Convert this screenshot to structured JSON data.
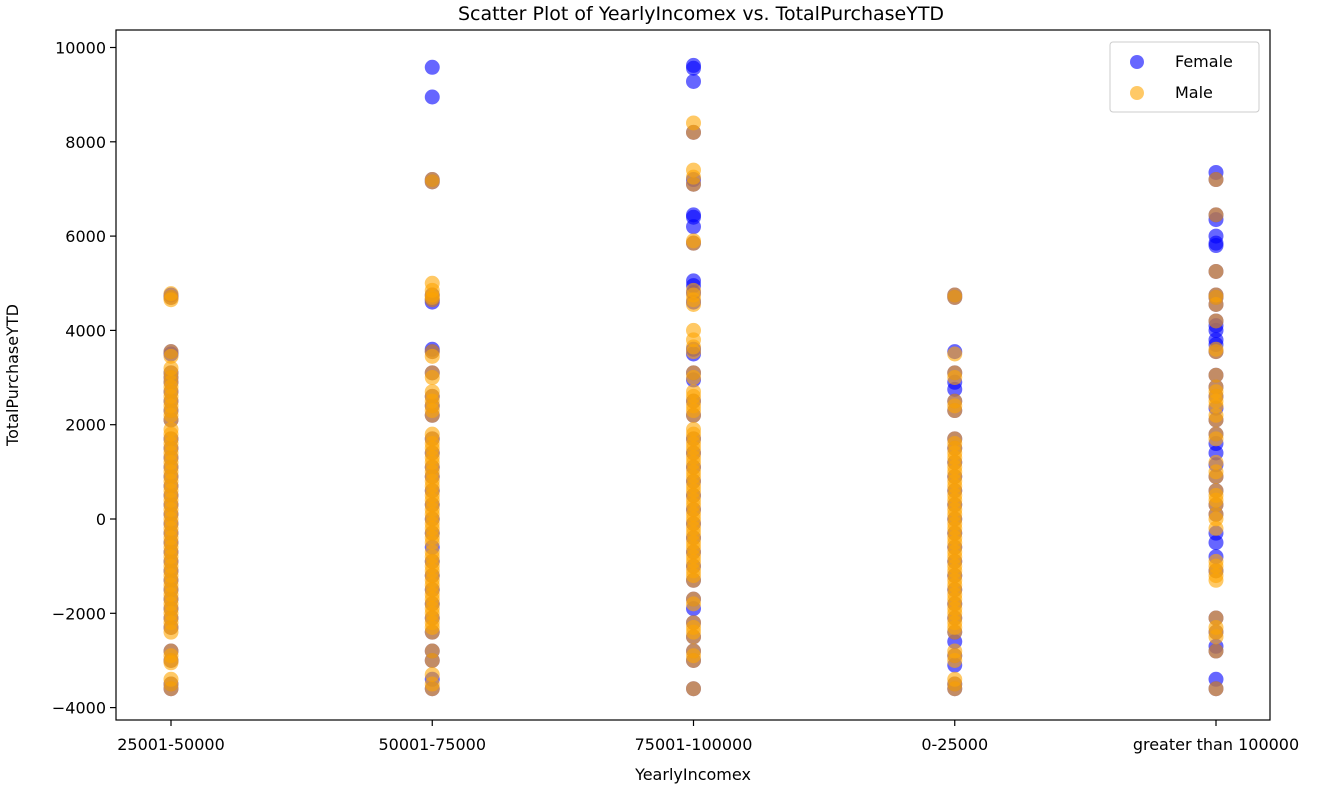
{
  "chart_data": {
    "type": "scatter",
    "title": "Scatter Plot of YearlyIncomex vs. TotalPurchaseYTD",
    "xlabel": "YearlyIncomex",
    "ylabel": "TotalPurchaseYTD",
    "categories": [
      "25001-50000",
      "50001-75000",
      "75001-100000",
      "0-25000",
      "greater than 100000"
    ],
    "ylim": [
      -4300,
      10300
    ],
    "yticks": [
      -4000,
      -2000,
      0,
      2000,
      4000,
      6000,
      8000,
      10000
    ],
    "ytick_labels": [
      "−4000",
      "−2000",
      "0",
      "2000",
      "4000",
      "6000",
      "8000",
      "10000"
    ],
    "legend_position": "top-right",
    "grid": false,
    "series": [
      {
        "name": "Female",
        "color": "#0000ff",
        "alpha": 0.6,
        "points": [
          {
            "x": "25001-50000",
            "y": [
              4750,
              4700,
              3550,
              3500,
              3100,
              3000,
              2900,
              2700,
              2500,
              2300,
              2100,
              1700,
              1500,
              1300,
              1100,
              900,
              700,
              500,
              300,
              100,
              -100,
              -300,
              -500,
              -700,
              -900,
              -1100,
              -1300,
              -1500,
              -1700,
              -1900,
              -2100,
              -2300,
              -2800,
              -3000,
              -3500,
              -3600
            ]
          },
          {
            "x": "50001-75000",
            "y": [
              9580,
              8950,
              7200,
              7150,
              4750,
              4650,
              4600,
              3600,
              3550,
              3100,
              2600,
              2400,
              2200,
              1700,
              1400,
              1100,
              900,
              600,
              300,
              0,
              -300,
              -600,
              -900,
              -1200,
              -1500,
              -1800,
              -2100,
              -2400,
              -2800,
              -3000,
              -3400,
              -3600
            ]
          },
          {
            "x": "75001-100000",
            "y": [
              9620,
              9560,
              9280,
              8200,
              7200,
              7100,
              6450,
              6400,
              6200,
              5850,
              5050,
              4950,
              4800,
              4600,
              3600,
              3500,
              3100,
              2950,
              2500,
              2200,
              1700,
              1400,
              1100,
              800,
              500,
              200,
              -100,
              -400,
              -700,
              -1000,
              -1300,
              -1700,
              -1900,
              -2200,
              -2500,
              -2800,
              -3000,
              -3600
            ]
          },
          {
            "x": "0-25000",
            "y": [
              4750,
              4700,
              3550,
              3100,
              2900,
              2750,
              2500,
              2300,
              1700,
              1500,
              1200,
              900,
              600,
              300,
              0,
              -300,
              -600,
              -900,
              -1200,
              -1500,
              -1800,
              -2100,
              -2400,
              -2600,
              -2900,
              -3100,
              -3500,
              -3600
            ]
          },
          {
            "x": "greater than 100000",
            "y": [
              7350,
              7200,
              6450,
              6350,
              6000,
              5850,
              5800,
              5250,
              4750,
              4700,
              4550,
              4200,
              4100,
              4000,
              3800,
              3700,
              3550,
              3050,
              2800,
              2600,
              2350,
              2100,
              1800,
              1600,
              1400,
              1150,
              900,
              600,
              300,
              100,
              -300,
              -500,
              -800,
              -1100,
              -2100,
              -2400,
              -2700,
              -2800,
              -3400,
              -3600
            ]
          }
        ]
      },
      {
        "name": "Male",
        "color": "#ffa500",
        "alpha": 0.6,
        "points": [
          {
            "x": "25001-50000",
            "y": [
              4780,
              4700,
              4650,
              3550,
              3450,
              3200,
              3100,
              3000,
              2900,
              2800,
              2700,
              2600,
              2500,
              2400,
              2300,
              2200,
              2100,
              1900,
              1800,
              1700,
              1600,
              1500,
              1400,
              1300,
              1200,
              1100,
              1000,
              900,
              800,
              700,
              600,
              500,
              400,
              300,
              200,
              100,
              0,
              -100,
              -200,
              -300,
              -400,
              -500,
              -600,
              -700,
              -800,
              -900,
              -1000,
              -1100,
              -1200,
              -1300,
              -1400,
              -1500,
              -1600,
              -1700,
              -1800,
              -1900,
              -2000,
              -2100,
              -2200,
              -2300,
              -2400,
              -2800,
              -2900,
              -3000,
              -3050,
              -3400,
              -3500,
              -3600
            ]
          },
          {
            "x": "50001-75000",
            "y": [
              7200,
              7150,
              5000,
              4850,
              4750,
              4700,
              4650,
              3550,
              3450,
              3100,
              3000,
              2700,
              2600,
              2500,
              2400,
              2300,
              2200,
              1800,
              1700,
              1600,
              1500,
              1400,
              1300,
              1200,
              1100,
              1000,
              900,
              800,
              700,
              600,
              500,
              400,
              300,
              200,
              100,
              0,
              -100,
              -200,
              -300,
              -400,
              -500,
              -700,
              -800,
              -900,
              -1000,
              -1100,
              -1200,
              -1300,
              -1400,
              -1500,
              -1600,
              -1700,
              -1800,
              -1900,
              -2000,
              -2100,
              -2200,
              -2300,
              -2400,
              -2800,
              -3000,
              -3300,
              -3500,
              -3600
            ]
          },
          {
            "x": "75001-100000",
            "y": [
              8400,
              8200,
              7400,
              7250,
              7100,
              5900,
              5850,
              4850,
              4750,
              4650,
              4550,
              4000,
              3800,
              3650,
              3550,
              3100,
              3000,
              2700,
              2600,
              2500,
              2400,
              2300,
              2200,
              1900,
              1800,
              1700,
              1600,
              1500,
              1400,
              1300,
              1200,
              1100,
              1000,
              900,
              800,
              700,
              600,
              500,
              400,
              300,
              200,
              100,
              0,
              -100,
              -200,
              -300,
              -400,
              -500,
              -600,
              -700,
              -800,
              -900,
              -1000,
              -1100,
              -1200,
              -1300,
              -1700,
              -1800,
              -2200,
              -2300,
              -2400,
              -2500,
              -2800,
              -2900,
              -3000,
              -3600
            ]
          },
          {
            "x": "0-25000",
            "y": [
              4750,
              4700,
              3500,
              3100,
              3000,
              2500,
              2400,
              2300,
              1700,
              1600,
              1500,
              1400,
              1300,
              1200,
              1100,
              1000,
              900,
              800,
              700,
              600,
              500,
              400,
              300,
              200,
              100,
              0,
              -100,
              -200,
              -300,
              -400,
              -500,
              -600,
              -700,
              -800,
              -900,
              -1000,
              -1100,
              -1200,
              -1300,
              -1400,
              -1500,
              -1600,
              -1700,
              -1800,
              -1900,
              -2000,
              -2100,
              -2200,
              -2300,
              -2400,
              -2800,
              -2900,
              -3000,
              -3400,
              -3500,
              -3600
            ]
          },
          {
            "x": "greater than 100000",
            "y": [
              7200,
              6450,
              5250,
              4750,
              4700,
              4550,
              4200,
              3600,
              3550,
              3050,
              2800,
              2700,
              2600,
              2500,
              2400,
              2200,
              2100,
              1800,
              1700,
              1200,
              1000,
              900,
              600,
              500,
              400,
              300,
              100,
              0,
              -200,
              -900,
              -1000,
              -1100,
              -1200,
              -1300,
              -2100,
              -2300,
              -2400,
              -2500,
              -2800,
              -3600
            ]
          }
        ]
      }
    ]
  }
}
